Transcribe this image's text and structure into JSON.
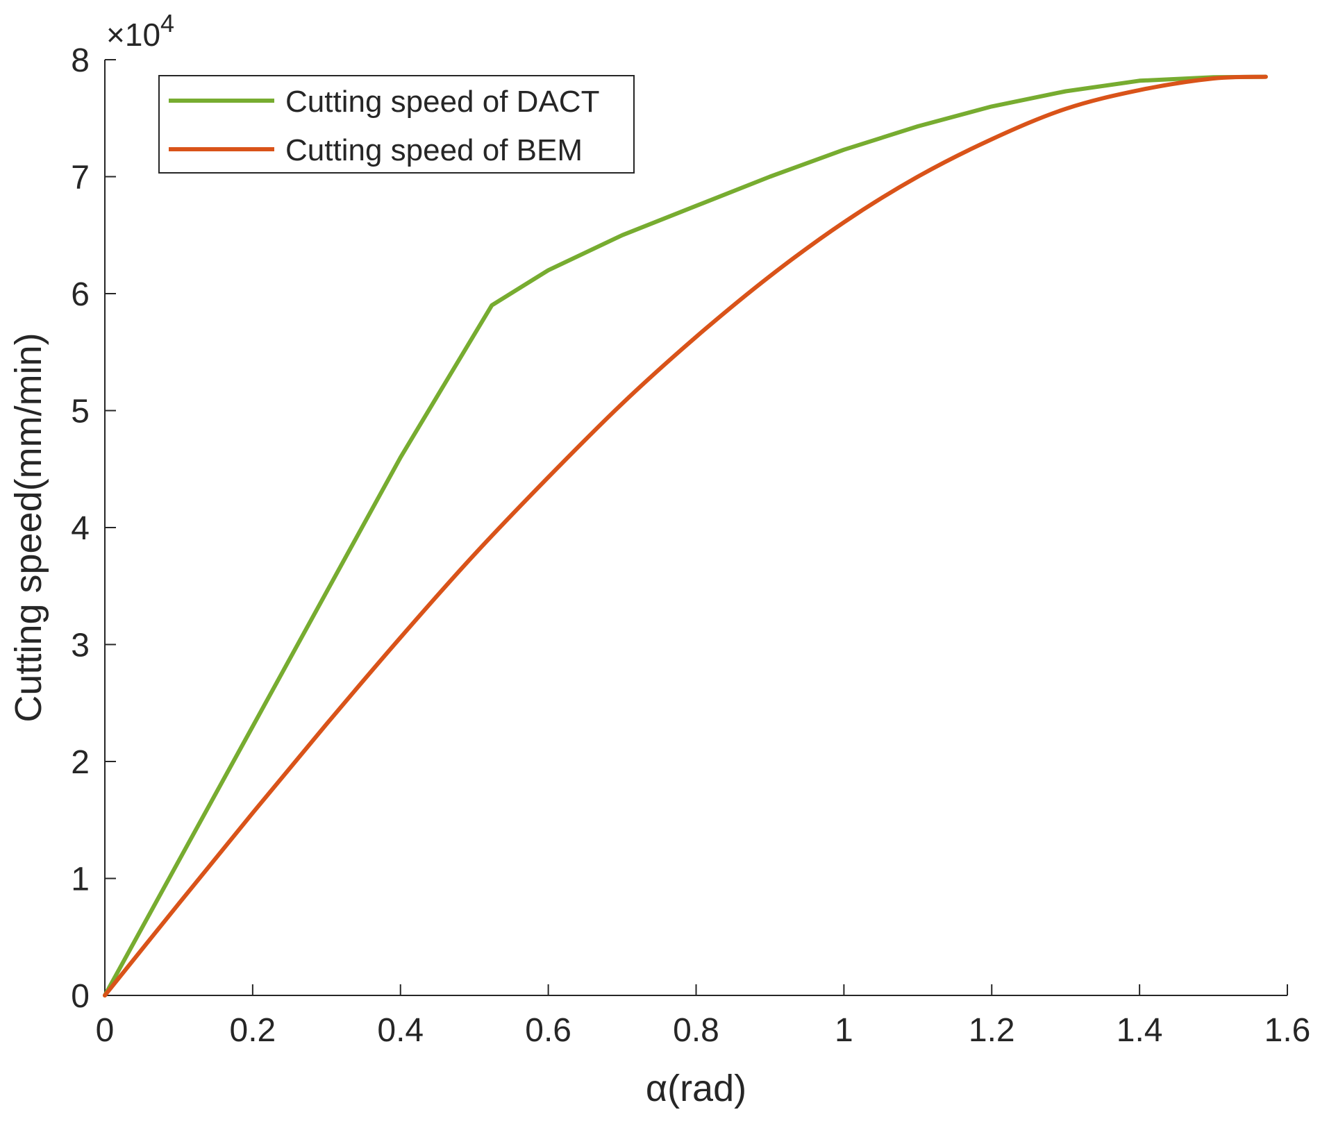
{
  "chart_data": {
    "type": "line",
    "title": "",
    "xlabel": "α(rad)",
    "ylabel": "Cutting speed(mm/min)",
    "xlim": [
      0,
      1.6
    ],
    "ylim": [
      0,
      80000
    ],
    "y_exponent_label": {
      "prefix": "×10",
      "power": "4"
    },
    "x_ticks": [
      0,
      0.2,
      0.4,
      0.6,
      0.8,
      1.0,
      1.2,
      1.4,
      1.6
    ],
    "x_tick_labels": [
      "0",
      "0.2",
      "0.4",
      "0.6",
      "0.8",
      "1",
      "1.2",
      "1.4",
      "1.6"
    ],
    "y_ticks": [
      0,
      10000,
      20000,
      30000,
      40000,
      50000,
      60000,
      70000,
      80000
    ],
    "y_tick_labels": [
      "0",
      "1",
      "2",
      "3",
      "4",
      "5",
      "6",
      "7",
      "8"
    ],
    "grid": false,
    "legend_position": "top-left",
    "series": [
      {
        "name": "Cutting speed of DACT",
        "color": "#77ac30",
        "x": [
          0,
          0.1,
          0.2,
          0.3,
          0.4,
          0.5236,
          0.6,
          0.7,
          0.8,
          0.9,
          1.0,
          1.1,
          1.2,
          1.3,
          1.4,
          1.5,
          1.5708
        ],
        "y": [
          0,
          11500,
          23000,
          34500,
          46000,
          59000,
          62000,
          65000,
          67500,
          70000,
          72300,
          74300,
          76000,
          77300,
          78200,
          78500,
          78540
        ]
      },
      {
        "name": "Cutting speed of BEM",
        "color": "#d95319",
        "x": [
          0,
          0.1,
          0.2,
          0.3,
          0.4,
          0.5,
          0.6,
          0.7,
          0.8,
          0.9,
          1.0,
          1.1,
          1.2,
          1.3,
          1.4,
          1.5,
          1.5708
        ],
        "y": [
          0,
          7840,
          15600,
          23200,
          30600,
          37700,
          44300,
          50600,
          56300,
          61500,
          66100,
          70000,
          73200,
          75800,
          77400,
          78400,
          78540
        ]
      }
    ]
  }
}
